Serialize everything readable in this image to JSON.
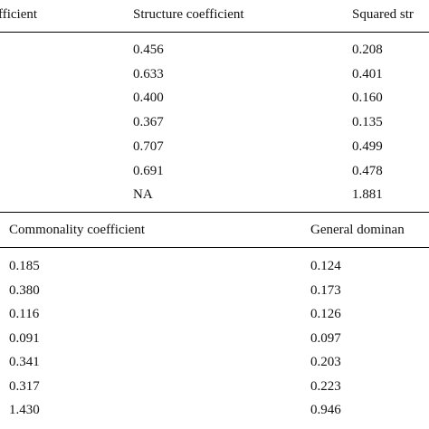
{
  "top_table": {
    "headers": [
      "fficient",
      "Structure coefficient",
      "Squared str"
    ],
    "structure_coefficient": [
      "0.456",
      "0.633",
      "0.400",
      "0.367",
      "0.707",
      "0.691",
      "NA"
    ],
    "squared_structure": [
      "0.208",
      "0.401",
      "0.160",
      "0.135",
      "0.499",
      "0.478",
      "1.881"
    ]
  },
  "bottom_table": {
    "headers": [
      "Commonality coefficient",
      "General dominan"
    ],
    "commonality_coefficient": [
      "0.185",
      "0.380",
      "0.116",
      "0.091",
      "0.341",
      "0.317",
      "1.430"
    ],
    "general_dominance": [
      "0.124",
      "0.173",
      "0.126",
      "0.097",
      "0.203",
      "0.223",
      "0.946"
    ]
  }
}
